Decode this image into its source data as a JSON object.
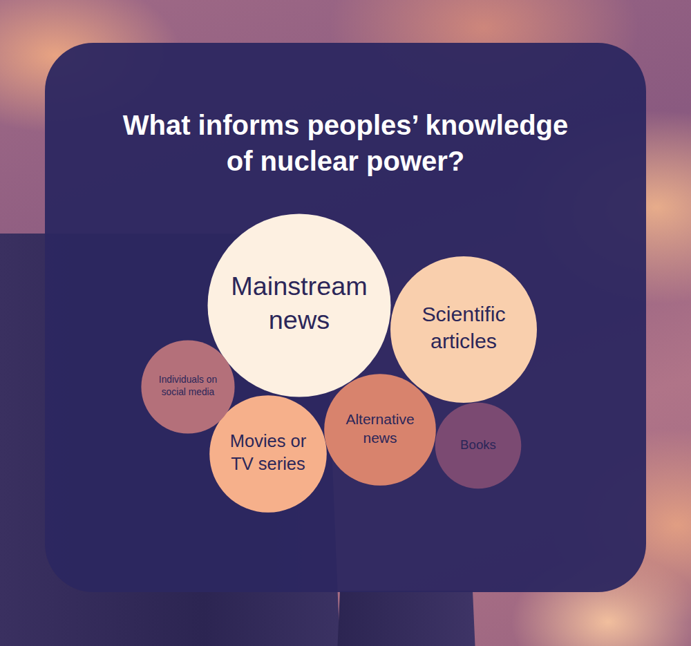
{
  "chart_data": {
    "type": "bubble",
    "title": "What informs peoples’ knowledge\nof nuclear power?",
    "categories": [
      "Mainstream\nnews",
      "Scientific\narticles",
      "Movies or\nTV series",
      "Alternative\nnews",
      "Individuals on\nsocial media",
      "Books"
    ],
    "values": [
      100,
      80,
      64,
      61,
      51,
      47
    ],
    "colors": [
      "#fdf0e1",
      "#f9cfad",
      "#f6b08b",
      "#d8836d",
      "#b4707a",
      "#7b4a72"
    ],
    "tick_labels": false
  }
}
